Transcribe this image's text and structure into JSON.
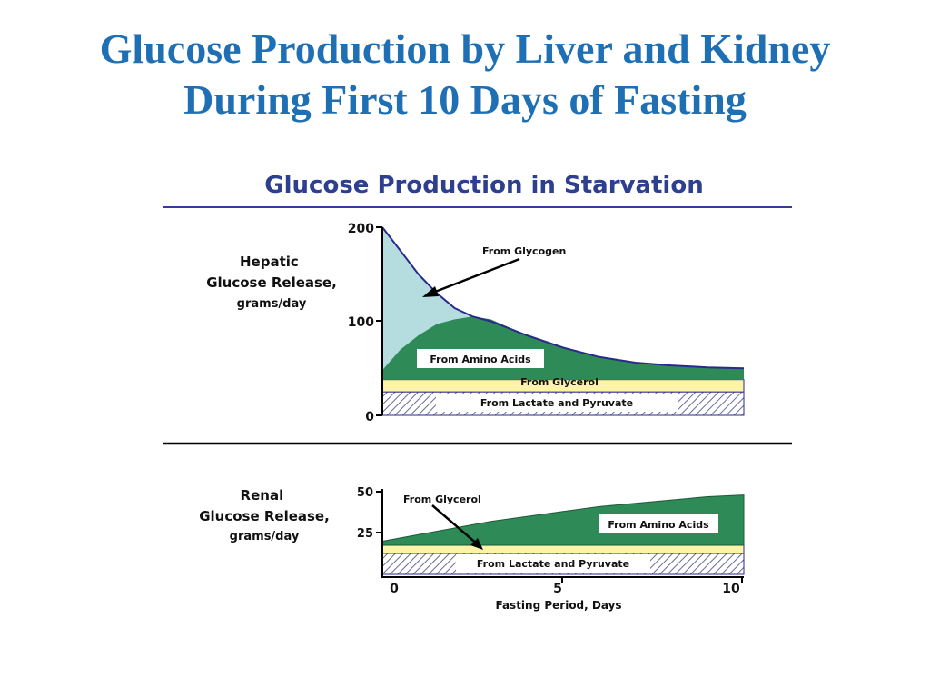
{
  "slide": {
    "title_line1": "Glucose Production by Liver and Kidney",
    "title_line2": "During First 10 Days of Fasting"
  },
  "colors": {
    "title": "#1f6fb5",
    "figure_title": "#2e3f8f",
    "glycogen": "#b5dde0",
    "amino_acids": "#2e8b57",
    "glycerol": "#fff3a8",
    "lactate_pyruvate_hatch": "#6a6a9a",
    "outline": "#2a2a8a"
  },
  "figure": {
    "title": "Glucose Production in Starvation"
  },
  "chart_data": [
    {
      "type": "area",
      "panel": "hepatic",
      "ylabel": [
        "Hepatic",
        "Glucose Release,",
        "grams/day"
      ],
      "ylim": [
        0,
        200
      ],
      "yticks": [
        "200",
        "100",
        "0"
      ],
      "x_days": [
        0,
        0.5,
        1,
        1.5,
        2,
        2.5,
        3,
        4,
        5,
        6,
        7,
        8,
        9,
        10
      ],
      "stacked_layers": [
        {
          "name": "From Lactate and Pyruvate",
          "fill": "hatch",
          "values": [
            25,
            25,
            25,
            25,
            25,
            25,
            25,
            25,
            25,
            25,
            25,
            25,
            25,
            25
          ]
        },
        {
          "name": "From Glycerol",
          "fill": "solid",
          "values": [
            13,
            13,
            13,
            13,
            13,
            13,
            13,
            13,
            13,
            13,
            13,
            13,
            13,
            13
          ]
        },
        {
          "name": "From Amino Acids",
          "fill": "solid",
          "total": [
            48,
            70,
            85,
            97,
            102,
            105,
            102,
            85,
            72,
            62,
            56,
            53,
            51,
            50
          ]
        },
        {
          "name": "From Glycogen",
          "fill": "solid",
          "total": [
            200,
            175,
            150,
            130,
            114,
            105,
            100,
            85,
            72,
            62,
            56,
            53,
            51,
            50
          ]
        }
      ],
      "annotations": [
        "From Glycogen",
        "From Amino Acids",
        "From Glycerol",
        "From Lactate and Pyruvate"
      ]
    },
    {
      "type": "area",
      "panel": "renal",
      "ylabel": [
        "Renal",
        "Glucose Release,",
        "grams/day"
      ],
      "ylim": [
        0,
        50
      ],
      "yticks": [
        "50",
        "25"
      ],
      "xticks": [
        "0",
        "5",
        "10"
      ],
      "xlabel": "Fasting Period, Days",
      "x_days": [
        0,
        1,
        2,
        3,
        4,
        5,
        6,
        7,
        8,
        9,
        10
      ],
      "stacked_layers": [
        {
          "name": "From Lactate and Pyruvate",
          "fill": "hatch",
          "total": 17
        },
        {
          "name": "From Glycerol",
          "fill": "solid",
          "total": 20
        },
        {
          "name": "From Amino Acids",
          "fill": "solid",
          "total": [
            20,
            24,
            28,
            32,
            35,
            38,
            41,
            43,
            45,
            47,
            48
          ]
        }
      ],
      "annotations": [
        "From Glycerol",
        "From Amino Acids",
        "From Lactate and Pyruvate"
      ]
    }
  ]
}
